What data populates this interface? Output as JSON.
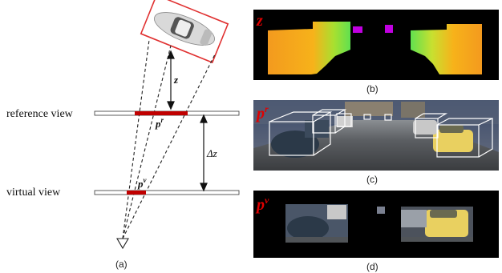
{
  "left_panel": {
    "reference_label": "reference view",
    "virtual_label": "virtual view",
    "z_label": "z",
    "delta_z_label": "Δz",
    "p_r_base": "p",
    "p_r_sup": "r",
    "p_v_base": "p",
    "p_v_sup": "v",
    "caption": "(a)"
  },
  "panel_b": {
    "symbol": "z",
    "caption": "(b)"
  },
  "panel_c": {
    "symbol_base": "p",
    "symbol_sup": "r",
    "caption": "(c)"
  },
  "panel_d": {
    "symbol_base": "p",
    "symbol_sup": "v",
    "caption": "(d)"
  },
  "colors": {
    "highlight_red": "#c00000",
    "symbol_red": "#e00000",
    "depth_orange": "#f2a020",
    "depth_green": "#78e040",
    "depth_magenta": "#c000e0"
  }
}
